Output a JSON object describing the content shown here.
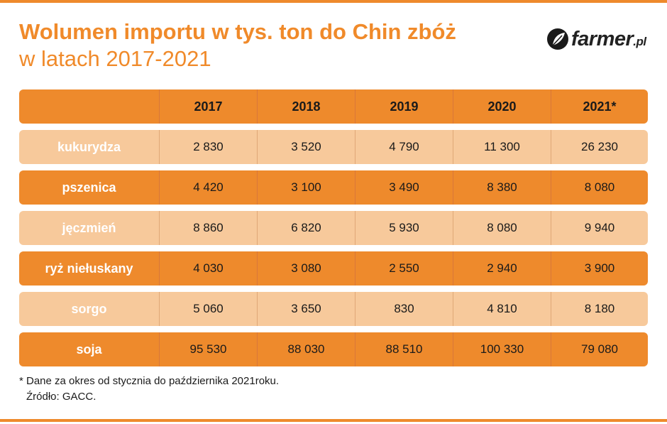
{
  "title": {
    "line1": "Wolumen importu w tys. ton do Chin zbóż",
    "line2": "w latach 2017-2021"
  },
  "logo": {
    "main": "farmer",
    "suffix": ".pl"
  },
  "colors": {
    "dark_row": "#ee8a2c",
    "light_row": "#f7c99b",
    "title": "#f08a2a"
  },
  "chart_data": {
    "type": "table",
    "columns": [
      "2017",
      "2018",
      "2019",
      "2020",
      "2021*"
    ],
    "rows": [
      {
        "label": "kukurydza",
        "values": [
          "2 830",
          "3 520",
          "4 790",
          "11 300",
          "26 230"
        ]
      },
      {
        "label": "pszenica",
        "values": [
          "4 420",
          "3 100",
          "3 490",
          "8 380",
          "8 080"
        ]
      },
      {
        "label": "jęczmień",
        "values": [
          "8 860",
          "6 820",
          "5 930",
          "8 080",
          "9 940"
        ]
      },
      {
        "label": "ryż niełuskany",
        "values": [
          "4 030",
          "3 080",
          "2 550",
          "2 940",
          "3 900"
        ]
      },
      {
        "label": "sorgo",
        "values": [
          "5 060",
          "3 650",
          "830",
          "4 810",
          "8 180"
        ]
      },
      {
        "label": "soja",
        "values": [
          "95 530",
          "88 030",
          "88 510",
          "100 330",
          "79 080"
        ]
      }
    ]
  },
  "footnote": {
    "note": "* Dane za okres od stycznia do października 2021roku.",
    "source": "Źródło: GACC."
  }
}
